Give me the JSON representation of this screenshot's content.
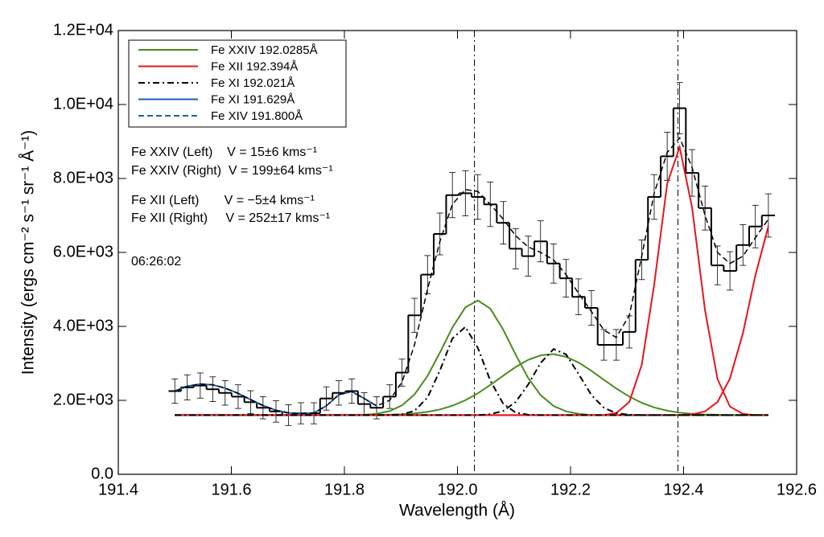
{
  "chart_data": {
    "type": "line",
    "x_label": "Wavelength (Å)",
    "y_label": "Intensity (ergs cm⁻² s⁻¹ sr⁻¹ Å⁻¹)",
    "xlim": [
      191.4,
      192.6
    ],
    "ylim": [
      0,
      12000
    ],
    "xticks": [
      191.4,
      191.6,
      191.8,
      {
        "value": 192,
        "label": "192.0"
      },
      192.2,
      192.4,
      192.6
    ],
    "yticks": [
      {
        "value": 0,
        "label": "0.0"
      },
      {
        "value": 2000,
        "label": "2.0E+03"
      },
      {
        "value": 4000,
        "label": "4.0E+03"
      },
      {
        "value": 6000,
        "label": "6.0E+03"
      },
      {
        "value": 8000,
        "label": "8.0E+03"
      },
      {
        "value": 10000,
        "label": "1.0E+04"
      },
      {
        "value": 12000,
        "label": "1.2E+04"
      }
    ],
    "vlines": [
      192.03,
      192.39
    ],
    "annotations": [
      "Fe XXIV (Left)    V = 15±6 kms⁻¹",
      "Fe XXIV (Right)  V = 199±64 kms⁻¹",
      "Fe XII (Left)       V = −5±4 kms⁻¹",
      "Fe XII (Right)     V = 252±17 kms⁻¹",
      "06:26:02"
    ],
    "x": [
      191.5,
      191.522,
      191.545,
      191.567,
      191.589,
      191.612,
      191.634,
      191.656,
      191.679,
      191.701,
      191.723,
      191.746,
      191.768,
      191.79,
      191.813,
      191.835,
      191.857,
      191.88,
      191.902,
      191.924,
      191.947,
      191.969,
      191.991,
      192.014,
      192.036,
      192.058,
      192.081,
      192.103,
      192.125,
      192.147,
      192.17,
      192.192,
      192.214,
      192.237,
      192.259,
      192.281,
      192.304,
      192.326,
      192.348,
      192.371,
      192.393,
      192.415,
      192.438,
      192.46,
      192.482,
      192.505,
      192.527,
      192.55
    ],
    "observed": {
      "color": "#000000",
      "values": [
        2250,
        2350,
        2400,
        2300,
        2200,
        2100,
        1950,
        1800,
        1700,
        1600,
        1650,
        1650,
        2050,
        2200,
        2250,
        1900,
        1800,
        2100,
        2750,
        4300,
        5400,
        6500,
        7550,
        7600,
        7500,
        7300,
        6800,
        6100,
        5900,
        6300,
        5700,
        5300,
        4800,
        4500,
        3500,
        3500,
        3850,
        5800,
        7500,
        8600,
        9900,
        8150,
        7200,
        5650,
        5500,
        6200,
        6700,
        7000
      ],
      "errors": [
        330,
        340,
        340,
        335,
        330,
        320,
        310,
        300,
        290,
        280,
        285,
        285,
        315,
        330,
        330,
        305,
        300,
        320,
        365,
        460,
        515,
        565,
        610,
        610,
        605,
        600,
        575,
        545,
        540,
        555,
        530,
        510,
        485,
        470,
        415,
        415,
        435,
        535,
        605,
        650,
        695,
        630,
        595,
        525,
        520,
        550,
        575,
        585
      ]
    },
    "fit": {
      "color": "#000000",
      "values": [
        2250,
        2380,
        2440,
        2420,
        2330,
        2190,
        2020,
        1860,
        1730,
        1660,
        1640,
        1660,
        1850,
        2150,
        2240,
        2050,
        1850,
        2000,
        2500,
        3500,
        5000,
        6300,
        7300,
        7700,
        7650,
        7300,
        6900,
        6450,
        6150,
        6000,
        5800,
        5400,
        4900,
        4400,
        3900,
        3700,
        4300,
        5900,
        7600,
        8700,
        9100,
        8300,
        7000,
        6000,
        5700,
        5900,
        6400,
        6900
      ]
    },
    "series": [
      {
        "name": "Fe XXIV 192.0285Å",
        "color": "#4a8c1c",
        "dash": "solid",
        "curves": [
          [
            1600,
            1600,
            1600,
            1600,
            1600,
            1600,
            1600,
            1600,
            1600,
            1600,
            1600,
            1600,
            1600,
            1600,
            1600,
            1610,
            1636,
            1709,
            1865,
            2160,
            2660,
            3293,
            3968,
            4515,
            4700,
            4482,
            3910,
            3232,
            2607,
            2143,
            1847,
            1702,
            1636,
            1600,
            1600,
            1600,
            1600,
            1600,
            1600,
            1600,
            1600,
            1600,
            1600,
            1600,
            1600,
            1600,
            1600,
            1600
          ],
          [
            1600,
            1600,
            1600,
            1600,
            1600,
            1600,
            1600,
            1600,
            1600,
            1600,
            1600,
            1600,
            1600,
            1600,
            1600,
            1600,
            1600,
            1612,
            1625,
            1646,
            1688,
            1754,
            1854,
            2003,
            2189,
            2414,
            2667,
            2902,
            3095,
            3217,
            3250,
            3177,
            3023,
            2798,
            2557,
            2319,
            2102,
            1933,
            1808,
            1720,
            1667,
            1635,
            1618,
            1610,
            1600,
            1600,
            1600,
            1600
          ]
        ]
      },
      {
        "name": "Fe XII 192.394Å",
        "color": "#e8141c",
        "dash": "solid",
        "curves": [
          [
            1600,
            1600,
            1600,
            1600,
            1600,
            1600,
            1600,
            1600,
            1600,
            1600,
            1600,
            1600,
            1600,
            1600,
            1600,
            1600,
            1600,
            1600,
            1600,
            1600,
            1600,
            1600,
            1600,
            1600,
            1600,
            1600,
            1600,
            1600,
            1600,
            1600,
            1600,
            1600,
            1600,
            1600,
            1601,
            1657,
            1955,
            2963,
            5131,
            7857,
            8850,
            7219,
            4428,
            2579,
            1832,
            1633,
            1600,
            1600
          ],
          [
            1600,
            1600,
            1600,
            1600,
            1600,
            1600,
            1600,
            1600,
            1600,
            1600,
            1600,
            1600,
            1600,
            1600,
            1600,
            1600,
            1600,
            1600,
            1600,
            1600,
            1600,
            1600,
            1600,
            1600,
            1600,
            1600,
            1600,
            1600,
            1600,
            1600,
            1600,
            1600,
            1600,
            1600,
            1600,
            1600,
            1600,
            1600,
            1600,
            1600,
            1600,
            1621,
            1701,
            1956,
            2588,
            3819,
            5380,
            6708
          ]
        ]
      },
      {
        "name": "Fe XI 192.021Å",
        "color": "#000000",
        "dash": "dashdot",
        "curves": [
          [
            1600,
            1600,
            1600,
            1600,
            1600,
            1600,
            1600,
            1600,
            1600,
            1600,
            1600,
            1600,
            1600,
            1600,
            1600,
            1600,
            1600,
            1600,
            1621,
            1718,
            2075,
            2809,
            3671,
            3985,
            3421,
            2537,
            1906,
            1670,
            1611,
            1600,
            1600,
            1600,
            1600,
            1600,
            1600,
            1600,
            1600,
            1600,
            1600,
            1600,
            1600,
            1600,
            1600,
            1600,
            1600,
            1600,
            1600,
            1600
          ],
          [
            1600,
            1600,
            1600,
            1600,
            1600,
            1600,
            1600,
            1600,
            1600,
            1600,
            1600,
            1600,
            1600,
            1600,
            1600,
            1600,
            1600,
            1600,
            1600,
            1600,
            1600,
            1600,
            1600,
            1600,
            1600,
            1625,
            1714,
            1956,
            2425,
            3009,
            3386,
            3245,
            2719,
            2142,
            1799,
            1654,
            1610,
            1600,
            1600,
            1600,
            1600,
            1600,
            1600,
            1600,
            1600,
            1600,
            1600,
            1600
          ]
        ]
      },
      {
        "name": "Fe XI 191.629Å",
        "color": "#1a5fb4",
        "dash": "solid",
        "curves": [
          [
            2250,
            2380,
            2440,
            2420,
            2330,
            2190,
            2020,
            1860,
            1730,
            1660,
            1640,
            1660,
            null,
            null,
            null,
            null,
            null,
            null,
            null,
            null,
            null,
            null,
            null,
            null,
            null,
            null,
            null,
            null,
            null,
            null,
            null,
            null,
            null,
            null,
            null,
            null,
            null,
            null,
            null,
            null,
            null,
            null,
            null,
            null,
            null,
            null,
            null,
            null
          ]
        ]
      },
      {
        "name": "Fe XIV 191.800Å",
        "color": "#1a5fb4",
        "dash": "dashed",
        "curves": [
          [
            null,
            null,
            null,
            null,
            null,
            null,
            null,
            null,
            null,
            null,
            null,
            1660,
            1850,
            2150,
            2240,
            2050,
            1850,
            null,
            null,
            null,
            null,
            null,
            null,
            null,
            null,
            null,
            null,
            null,
            null,
            null,
            null,
            null,
            null,
            null,
            null,
            null,
            null,
            null,
            null,
            null,
            null,
            null,
            null,
            null,
            null,
            null,
            null,
            null
          ]
        ]
      }
    ]
  }
}
